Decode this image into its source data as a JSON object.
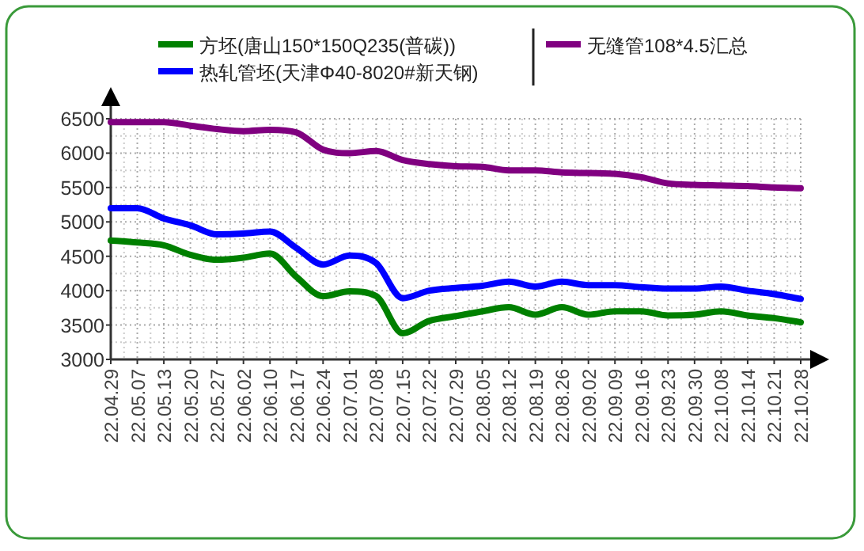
{
  "chart_data": {
    "type": "line",
    "categories": [
      "22.04.29",
      "22.05.07",
      "22.05.13",
      "22.05.20",
      "22.05.27",
      "22.06.02",
      "22.06.10",
      "22.06.17",
      "22.06.24",
      "22.07.01",
      "22.07.08",
      "22.07.15",
      "22.07.22",
      "22.07.29",
      "22.08.05",
      "22.08.12",
      "22.08.19",
      "22.08.26",
      "22.09.02",
      "22.09.09",
      "22.09.16",
      "22.09.23",
      "22.09.30",
      "22.10.08",
      "22.10.14",
      "22.10.21",
      "22.10.28"
    ],
    "series": [
      {
        "name": "方坯(唐山150*150Q235(普碳))",
        "color": "#008000",
        "values": [
          4730,
          4700,
          4660,
          4520,
          4450,
          4480,
          4540,
          4200,
          3920,
          3990,
          3920,
          3380,
          3560,
          3630,
          3700,
          3760,
          3650,
          3760,
          3650,
          3700,
          3700,
          3640,
          3650,
          3700,
          3640,
          3600,
          3540
        ]
      },
      {
        "name": "热轧管坯(天津Φ40-8020#新天钢)",
        "color": "#0000ff",
        "values": [
          5200,
          5200,
          5050,
          4950,
          4820,
          4830,
          4860,
          4620,
          4380,
          4510,
          4400,
          3890,
          4000,
          4040,
          4070,
          4130,
          4060,
          4130,
          4080,
          4080,
          4050,
          4030,
          4030,
          4060,
          4000,
          3950,
          3880
        ]
      },
      {
        "name": "无缝管108*4.5汇总",
        "color": "#800080",
        "values": [
          6450,
          6450,
          6450,
          6400,
          6350,
          6320,
          6340,
          6300,
          6050,
          6000,
          6030,
          5900,
          5840,
          5810,
          5800,
          5750,
          5750,
          5720,
          5710,
          5700,
          5650,
          5560,
          5540,
          5530,
          5520,
          5500,
          5490
        ]
      }
    ],
    "ylim": [
      3000,
      6500
    ],
    "yticks": [
      3000,
      3500,
      4000,
      4500,
      5000,
      5500,
      6000,
      6500
    ],
    "grid": true,
    "legend": "top"
  }
}
